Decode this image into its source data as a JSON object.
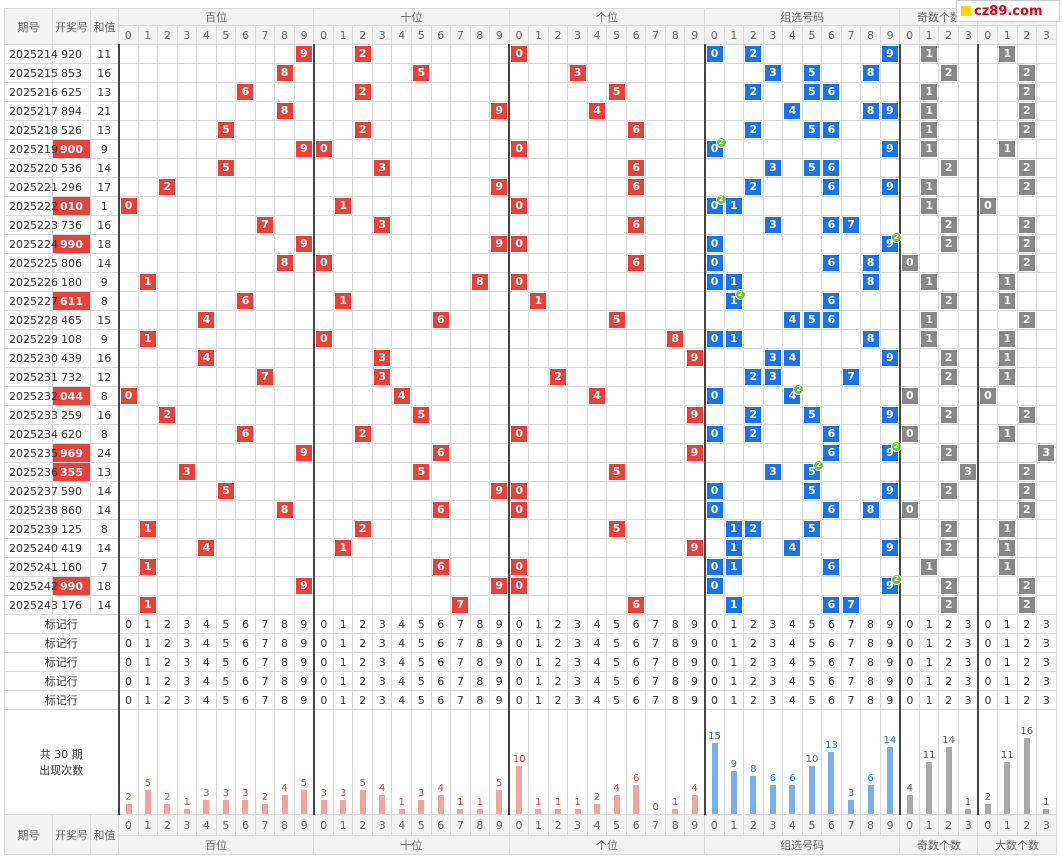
{
  "labels": {
    "issue": "期号",
    "winning": "开奖号",
    "sum": "和值",
    "marker_row": "标记行",
    "stats_total": "共 30 期",
    "stats_count": "出现次数"
  },
  "groups": [
    {
      "label": "百位",
      "digits": [
        "0",
        "1",
        "2",
        "3",
        "4",
        "5",
        "6",
        "7",
        "8",
        "9"
      ]
    },
    {
      "label": "十位",
      "digits": [
        "0",
        "1",
        "2",
        "3",
        "4",
        "5",
        "6",
        "7",
        "8",
        "9"
      ]
    },
    {
      "label": "个位",
      "digits": [
        "0",
        "1",
        "2",
        "3",
        "4",
        "5",
        "6",
        "7",
        "8",
        "9"
      ]
    },
    {
      "label": "组选号码",
      "digits": [
        "0",
        "1",
        "2",
        "3",
        "4",
        "5",
        "6",
        "7",
        "8",
        "9"
      ]
    },
    {
      "label": "奇数个数",
      "digits": [
        "0",
        "1",
        "2",
        "3"
      ]
    },
    {
      "label": "大数个数",
      "digits": [
        "0",
        "1",
        "2",
        "3"
      ]
    }
  ],
  "logo_text": "cz89.com",
  "colors": {
    "red": "#e8403a",
    "blue": "#1a74e8",
    "gray": "#888888",
    "dup": "#6bc13a"
  },
  "rows": [
    {
      "issue": "2025214",
      "num": "920",
      "sum": "11",
      "hl": false
    },
    {
      "issue": "2025215",
      "num": "853",
      "sum": "16",
      "hl": false
    },
    {
      "issue": "2025216",
      "num": "625",
      "sum": "13",
      "hl": false
    },
    {
      "issue": "2025217",
      "num": "894",
      "sum": "21",
      "hl": false
    },
    {
      "issue": "2025218",
      "num": "526",
      "sum": "13",
      "hl": false
    },
    {
      "issue": "2025219",
      "num": "900",
      "sum": "9",
      "hl": true
    },
    {
      "issue": "2025220",
      "num": "536",
      "sum": "14",
      "hl": false
    },
    {
      "issue": "2025221",
      "num": "296",
      "sum": "17",
      "hl": false
    },
    {
      "issue": "2025222",
      "num": "010",
      "sum": "1",
      "hl": true
    },
    {
      "issue": "2025223",
      "num": "736",
      "sum": "16",
      "hl": false
    },
    {
      "issue": "2025224",
      "num": "990",
      "sum": "18",
      "hl": true
    },
    {
      "issue": "2025225",
      "num": "806",
      "sum": "14",
      "hl": false
    },
    {
      "issue": "2025226",
      "num": "180",
      "sum": "9",
      "hl": false
    },
    {
      "issue": "2025227",
      "num": "611",
      "sum": "8",
      "hl": true
    },
    {
      "issue": "2025228",
      "num": "465",
      "sum": "15",
      "hl": false
    },
    {
      "issue": "2025229",
      "num": "108",
      "sum": "9",
      "hl": false
    },
    {
      "issue": "2025230",
      "num": "439",
      "sum": "16",
      "hl": false
    },
    {
      "issue": "2025231",
      "num": "732",
      "sum": "12",
      "hl": false
    },
    {
      "issue": "2025232",
      "num": "044",
      "sum": "8",
      "hl": true
    },
    {
      "issue": "2025233",
      "num": "259",
      "sum": "16",
      "hl": false
    },
    {
      "issue": "2025234",
      "num": "620",
      "sum": "8",
      "hl": false
    },
    {
      "issue": "2025235",
      "num": "969",
      "sum": "24",
      "hl": true
    },
    {
      "issue": "2025236",
      "num": "355",
      "sum": "13",
      "hl": true
    },
    {
      "issue": "2025237",
      "num": "590",
      "sum": "14",
      "hl": false
    },
    {
      "issue": "2025238",
      "num": "860",
      "sum": "14",
      "hl": false
    },
    {
      "issue": "2025239",
      "num": "125",
      "sum": "8",
      "hl": false
    },
    {
      "issue": "2025240",
      "num": "419",
      "sum": "14",
      "hl": false
    },
    {
      "issue": "2025241",
      "num": "160",
      "sum": "7",
      "hl": false
    },
    {
      "issue": "2025242",
      "num": "990",
      "sum": "18",
      "hl": true
    },
    {
      "issue": "2025243",
      "num": "176",
      "sum": "14",
      "hl": false
    }
  ],
  "dup_badge": "2",
  "stats": {
    "hundreds": [
      2,
      5,
      2,
      1,
      3,
      3,
      3,
      2,
      4,
      5
    ],
    "tens": [
      3,
      3,
      5,
      4,
      1,
      3,
      4,
      1,
      1,
      5
    ],
    "units": [
      10,
      1,
      1,
      1,
      2,
      4,
      6,
      0,
      1,
      4
    ],
    "group": [
      15,
      9,
      8,
      6,
      6,
      10,
      13,
      3,
      6,
      14
    ],
    "odd": [
      4,
      11,
      14,
      1
    ],
    "big": [
      2,
      11,
      16,
      1
    ]
  }
}
